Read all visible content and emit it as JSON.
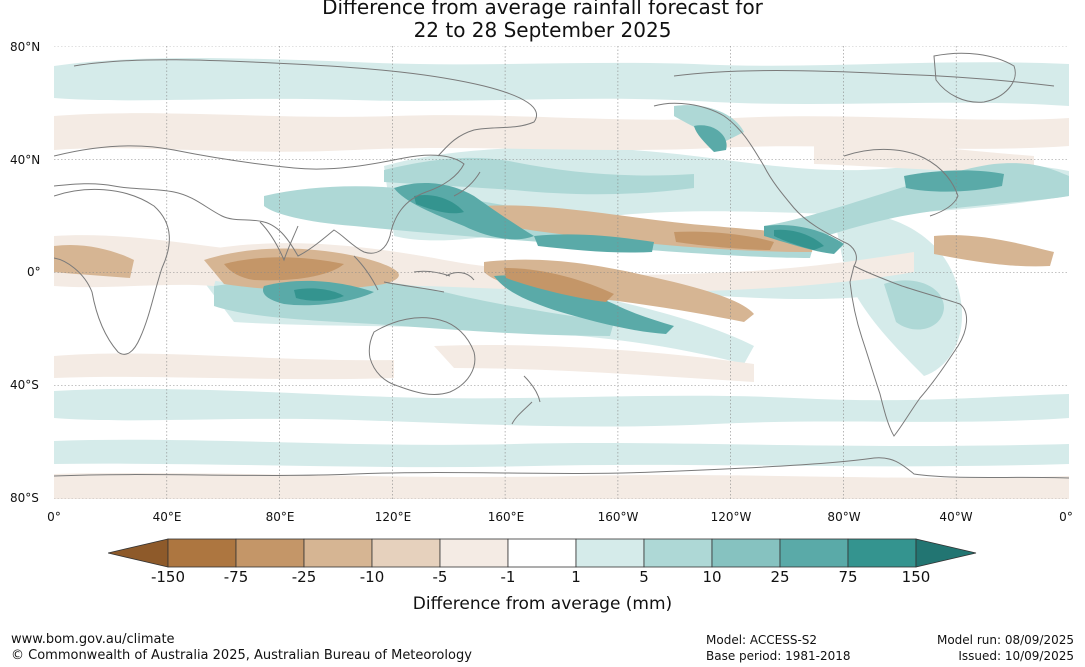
{
  "title": {
    "line1": "Difference from average rainfall forecast for",
    "line2": "22 to 28 September 2025"
  },
  "map": {
    "lat_labels": [
      "80°N",
      "40°N",
      "0°",
      "40°S",
      "80°S"
    ],
    "lon_labels": [
      "0°",
      "40°E",
      "80°E",
      "120°E",
      "160°E",
      "160°W",
      "120°W",
      "80°W",
      "40°W",
      "0°"
    ],
    "lat_range": [
      -80,
      80
    ],
    "lon_range": [
      0,
      360
    ],
    "grid": true,
    "central_longitude": 180
  },
  "colorbar": {
    "title": "Difference from average (mm)",
    "ticks": [
      "-150",
      "-75",
      "-25",
      "-10",
      "-5",
      "-1",
      "1",
      "5",
      "10",
      "25",
      "75",
      "150"
    ],
    "colors": [
      "#8e5a2a",
      "#ad7640",
      "#c49668",
      "#d6b593",
      "#e6d1bd",
      "#f4ebe4",
      "#ffffff",
      "#d5ebea",
      "#aed8d6",
      "#86c2c0",
      "#5aaaa8",
      "#34948f",
      "#227572"
    ],
    "extend": "both"
  },
  "footer": {
    "website": "www.bom.gov.au/climate",
    "copyright": "© Commonwealth of Australia 2025, Australian Bureau of Meteorology",
    "model": "Model: ACCESS-S2",
    "base_period": "Base period: 1981-2018",
    "model_run": "Model run: 08/09/2025",
    "issued": "Issued: 10/09/2025"
  }
}
